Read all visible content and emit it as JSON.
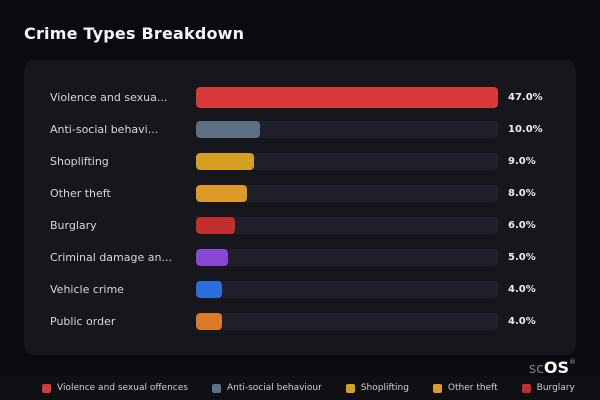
{
  "page": {
    "title": "Crime Types Breakdown"
  },
  "chart_data": {
    "type": "bar",
    "orientation": "horizontal",
    "title": "Crime Types Breakdown",
    "max_scale": 47,
    "grid": false,
    "categories": [
      "Violence and sexua...",
      "Anti-social behavi...",
      "Shoplifting",
      "Other theft",
      "Burglary",
      "Criminal damage an...",
      "Vehicle crime",
      "Public order"
    ],
    "values": [
      47.0,
      10.0,
      9.0,
      8.0,
      6.0,
      5.0,
      4.0,
      4.0
    ],
    "rows": [
      {
        "label": "Violence and sexua...",
        "value": 47.0,
        "value_label": "47.0%",
        "color": "#d83a3a"
      },
      {
        "label": "Anti-social behavi...",
        "value": 10.0,
        "value_label": "10.0%",
        "color": "#5c7186"
      },
      {
        "label": "Shoplifting",
        "value": 9.0,
        "value_label": "9.0%",
        "color": "#d5a021"
      },
      {
        "label": "Other theft",
        "value": 8.0,
        "value_label": "8.0%",
        "color": "#dd9a28"
      },
      {
        "label": "Burglary",
        "value": 6.0,
        "value_label": "6.0%",
        "color": "#c12f2f"
      },
      {
        "label": "Criminal damage an...",
        "value": 5.0,
        "value_label": "5.0%",
        "color": "#8847d4"
      },
      {
        "label": "Vehicle crime",
        "value": 4.0,
        "value_label": "4.0%",
        "color": "#2d6ede"
      },
      {
        "label": "Public order",
        "value": 4.0,
        "value_label": "4.0%",
        "color": "#dc7b26"
      }
    ]
  },
  "legend": {
    "items": [
      {
        "label": "Violence and sexual offences",
        "color": "#d83a3a"
      },
      {
        "label": "Anti-social behaviour",
        "color": "#5c7186"
      },
      {
        "label": "Shoplifting",
        "color": "#d5a021"
      },
      {
        "label": "Other theft",
        "color": "#dd9a28"
      },
      {
        "label": "Burglary",
        "color": "#c12f2f"
      }
    ]
  },
  "logo": {
    "prefix": "sc",
    "suffix": "OS",
    "reg": "®"
  }
}
